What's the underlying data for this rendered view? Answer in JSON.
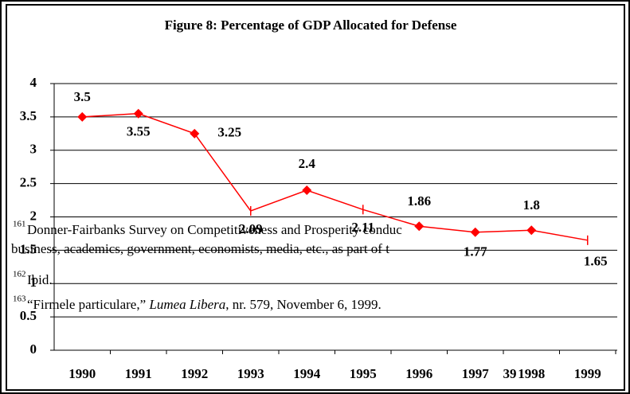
{
  "chart_data": {
    "type": "line",
    "title": "Figure 8:  Percentage of GDP Allocated for Defense",
    "categories": [
      "1990",
      "1991",
      "1992",
      "1993",
      "1994",
      "1995",
      "1996",
      "1997",
      "1998",
      "1999"
    ],
    "series": [
      {
        "name": "Defense",
        "color": "#ff0000",
        "values": [
          3.5,
          3.55,
          3.25,
          2.09,
          2.4,
          2.11,
          1.86,
          1.77,
          1.8,
          1.65
        ]
      }
    ],
    "ylim": [
      0,
      4
    ],
    "yticks": [
      0,
      0.5,
      1,
      1.5,
      2,
      2.5,
      3,
      3.5,
      4
    ],
    "grid": true
  },
  "footnotes": [
    {
      "number": "161",
      "lines": [
        "Donner-Fairbanks Survey on Competitiveness and Prosperity conduc",
        "business, academics, government, economists, media, etc., as part of t"
      ]
    },
    {
      "number": "162",
      "lines": [
        "Ibid."
      ]
    },
    {
      "number": "163",
      "lines": [
        "“Firmele particulare,” ",
        "Lumea Libera",
        ", nr. 579, November 6, 1999."
      ]
    }
  ],
  "page_number": "39"
}
